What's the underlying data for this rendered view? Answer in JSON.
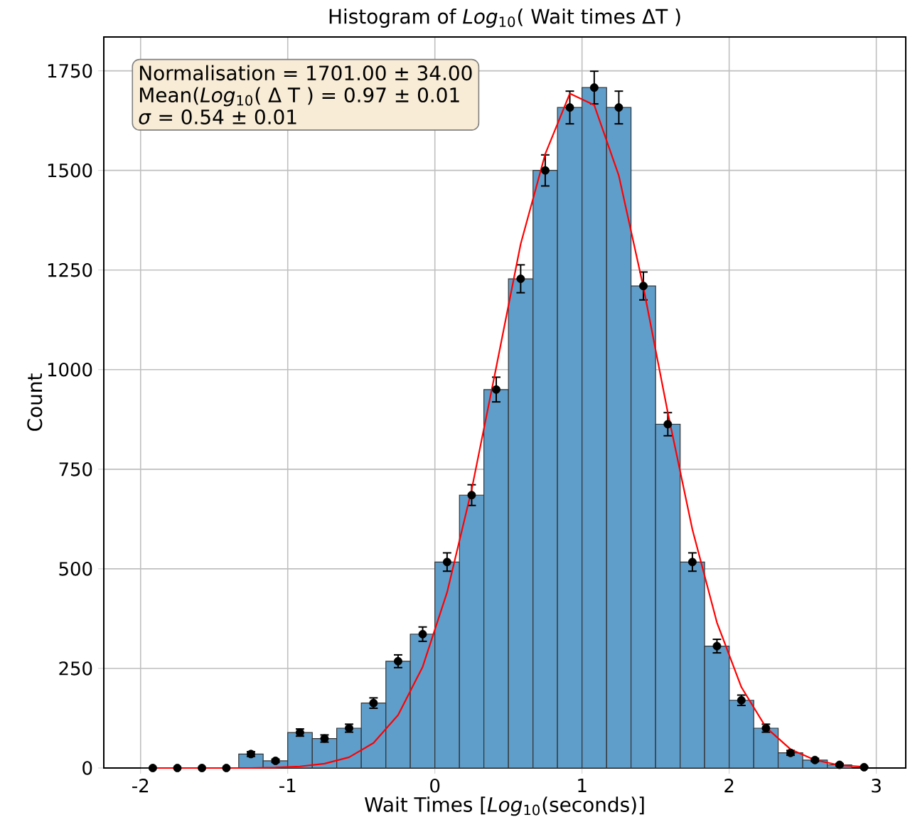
{
  "chart_data": {
    "type": "histogram",
    "title": "Histogram of *Log*$_{10}$( Wait times ΔT )",
    "xlabel": "Wait Times [*Log*$_{10}$(seconds)]",
    "ylabel": "Count",
    "bins": [
      -2,
      -1.833,
      -1.667,
      -1.5,
      -1.333,
      -1.167,
      -1,
      -0.833,
      -0.667,
      -0.5,
      -0.333,
      -0.167,
      0,
      0.167,
      0.333,
      0.5,
      0.667,
      0.833,
      1,
      1.167,
      1.333,
      1.5,
      1.667,
      1.833,
      2,
      2.167,
      2.333,
      2.5,
      2.667,
      2.833,
      3
    ],
    "values": [
      0,
      0,
      0,
      0,
      35,
      18,
      89,
      74,
      100,
      163,
      268,
      336,
      517,
      685,
      950,
      1228,
      1500,
      1658,
      1708,
      1658,
      1210,
      863,
      517,
      306,
      170,
      100,
      38,
      20,
      8,
      null
    ],
    "color": "#5f9ecb",
    "series": [
      {
        "type": "scatter",
        "color": "#000000",
        "x": [
          -1.917,
          -1.75,
          -1.583,
          -1.417,
          -1.25,
          -1.083,
          -0.917,
          -0.75,
          -0.583,
          -0.417,
          -0.25,
          -0.083,
          0.083,
          0.25,
          0.417,
          0.583,
          0.75,
          0.917,
          1.083,
          1.25,
          1.417,
          1.583,
          1.75,
          1.917,
          2.083,
          2.25,
          2.417,
          2.583,
          2.75,
          2.917
        ],
        "values": [
          0,
          0,
          0,
          0,
          35,
          18,
          89,
          74,
          100,
          163,
          268,
          336,
          517,
          685,
          950,
          1228,
          1500,
          1658,
          1708,
          1658,
          1210,
          863,
          517,
          306,
          170,
          100,
          38,
          20,
          8,
          2
        ],
        "errors": [
          null,
          null,
          null,
          null,
          6,
          4,
          9,
          9,
          10,
          13,
          16,
          18,
          23,
          26,
          31,
          35,
          39,
          41,
          41,
          41,
          35,
          29,
          23,
          17,
          13,
          10,
          6,
          4,
          3,
          1
        ]
      },
      {
        "type": "line",
        "color": "#ff0000",
        "x": [
          -1.917,
          -1.75,
          -1.583,
          -1.417,
          -1.25,
          -1.083,
          -0.917,
          -0.75,
          -0.583,
          -0.417,
          -0.25,
          -0.083,
          0.083,
          0.25,
          0.417,
          0.583,
          0.75,
          0.917,
          1.083,
          1.25,
          1.417,
          1.583,
          1.75,
          1.917,
          2.083,
          2.25,
          2.417,
          2.583,
          2.75,
          2.917
        ],
        "values": [
          0,
          0,
          0,
          0,
          0,
          1,
          4,
          11,
          27,
          63,
          133,
          254,
          441,
          699,
          1006,
          1315,
          1541,
          1693,
          1664,
          1487,
          1207,
          892,
          599,
          365,
          203,
          102,
          47,
          20,
          7,
          3
        ]
      }
    ],
    "xlim": [
      -2.25,
      3.2
    ],
    "ylim": [
      0,
      1835
    ],
    "xticks": [
      -2,
      -1,
      0,
      1,
      2,
      3
    ],
    "yticks": [
      0,
      250,
      500,
      750,
      1000,
      1250,
      1500,
      1750
    ],
    "grid": true,
    "annotations": [
      "Normalisation = 1701.00 ± 34.00",
      "Mean(*Log*$_{10}$( Δ T ) = 0.97 ± 0.01",
      "*σ* = 0.54 ± 0.01"
    ]
  }
}
